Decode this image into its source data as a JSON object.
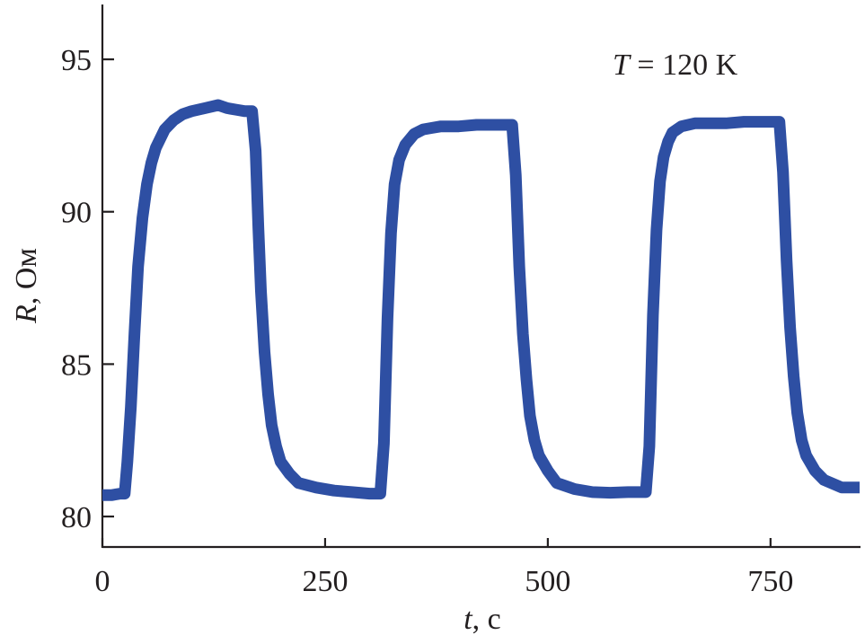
{
  "chart_data": {
    "type": "line",
    "title": "",
    "annotation": {
      "symbol": "T",
      "text": " = 120 K"
    },
    "xlabel": {
      "symbol": "t",
      "unit": ", с"
    },
    "ylabel": {
      "symbol": "R",
      "unit": ", Ом"
    },
    "xlim": [
      0,
      850
    ],
    "ylim": [
      79,
      96.8
    ],
    "xticks": [
      0,
      250,
      500,
      750
    ],
    "yticks": [
      80,
      85,
      90,
      95
    ],
    "xtick_labels": [
      "0",
      "250",
      "500",
      "750"
    ],
    "ytick_labels": [
      "80",
      "85",
      "90",
      "95"
    ],
    "grid": false,
    "legend": "none",
    "series": [
      {
        "color": "#2e4fa3",
        "x": [
          0,
          10,
          20,
          25,
          28,
          32,
          36,
          40,
          45,
          50,
          55,
          60,
          70,
          80,
          90,
          100,
          115,
          130,
          140,
          150,
          160,
          168,
          172,
          175,
          178,
          182,
          186,
          190,
          195,
          200,
          210,
          220,
          240,
          260,
          280,
          300,
          312,
          316,
          320,
          324,
          328,
          333,
          340,
          350,
          360,
          370,
          380,
          400,
          420,
          440,
          460,
          464,
          468,
          472,
          476,
          480,
          485,
          490,
          500,
          510,
          530,
          550,
          570,
          590,
          610,
          614,
          618,
          622,
          626,
          630,
          635,
          640,
          650,
          665,
          680,
          700,
          720,
          740,
          760,
          764,
          768,
          772,
          776,
          780,
          785,
          790,
          800,
          810,
          830,
          850
        ],
        "y": [
          80.7,
          80.7,
          80.75,
          80.75,
          81.8,
          83.6,
          86.0,
          88.2,
          89.8,
          90.9,
          91.6,
          92.1,
          92.7,
          93.0,
          93.2,
          93.3,
          93.4,
          93.5,
          93.4,
          93.35,
          93.3,
          93.3,
          92.0,
          89.5,
          87.4,
          85.4,
          84.0,
          83.0,
          82.3,
          81.8,
          81.4,
          81.1,
          80.95,
          80.85,
          80.8,
          80.75,
          80.75,
          82.4,
          86.5,
          89.3,
          90.9,
          91.7,
          92.2,
          92.55,
          92.7,
          92.75,
          92.8,
          92.8,
          92.85,
          92.85,
          92.85,
          91.2,
          88.2,
          86.0,
          84.5,
          83.3,
          82.5,
          82.0,
          81.5,
          81.1,
          80.9,
          80.8,
          80.78,
          80.8,
          80.8,
          82.3,
          86.6,
          89.4,
          91.0,
          91.8,
          92.3,
          92.6,
          92.8,
          92.9,
          92.9,
          92.9,
          92.95,
          92.95,
          92.95,
          91.3,
          88.4,
          86.2,
          84.6,
          83.4,
          82.5,
          82.0,
          81.5,
          81.2,
          80.95,
          80.95
        ]
      }
    ]
  }
}
